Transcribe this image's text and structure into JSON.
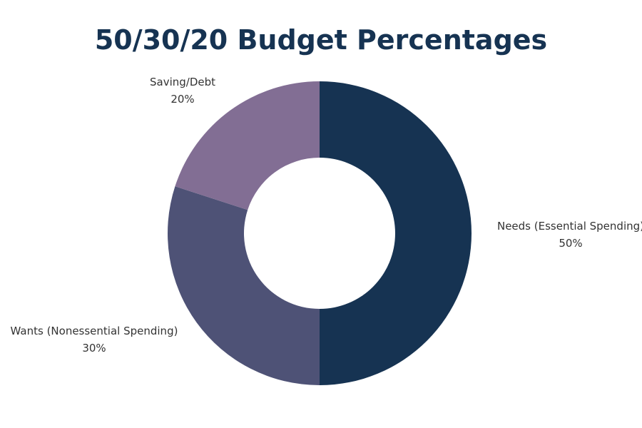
{
  "chart_data": {
    "type": "pie",
    "variant": "donut",
    "title": "50/30/20 Budget Percentages",
    "slices": [
      {
        "name": "Needs (Essential Spending)",
        "value": 50,
        "value_label": "50%",
        "color": "#163352"
      },
      {
        "name": "Wants (Nonessential Spending)",
        "value": 30,
        "value_label": "30%",
        "color": "#4e5276"
      },
      {
        "name": "Saving/Debt",
        "value": 20,
        "value_label": "20%",
        "color": "#826e94"
      }
    ],
    "start_angle": "12 o'clock",
    "direction": "clockwise"
  }
}
